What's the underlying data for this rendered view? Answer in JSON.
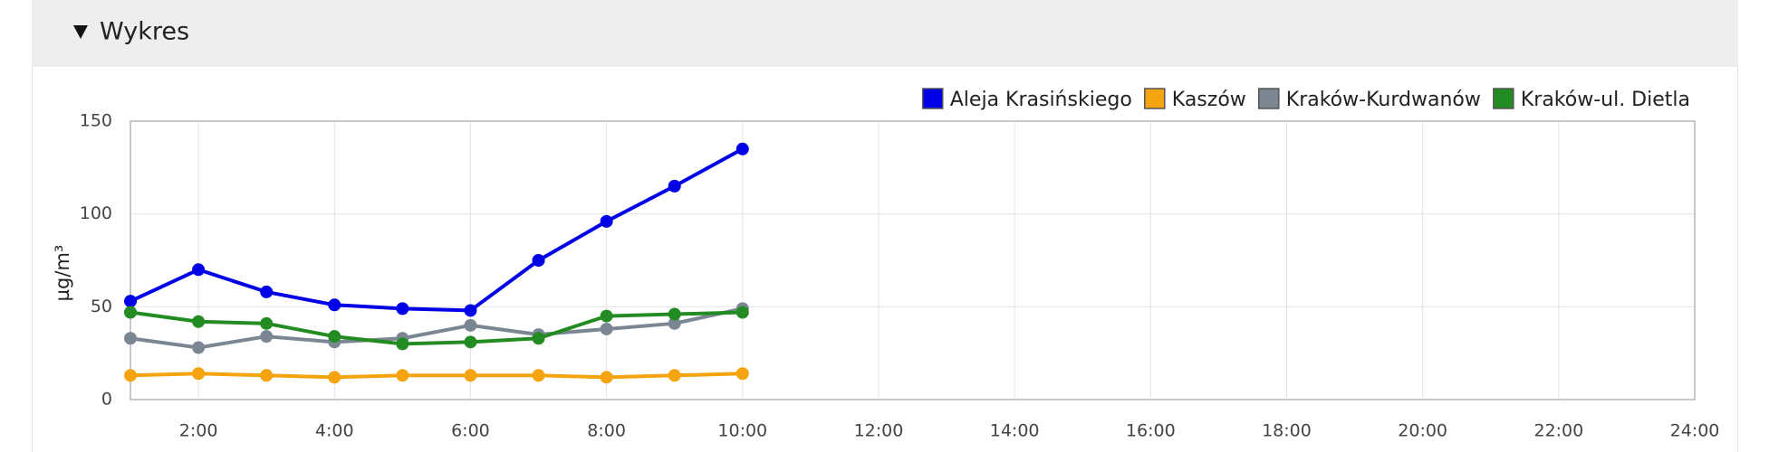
{
  "header": {
    "title": "Wykres"
  },
  "chart_data": {
    "type": "line",
    "ylabel": "µg/m³",
    "x": [
      1,
      2,
      3,
      4,
      5,
      6,
      7,
      8,
      9,
      10
    ],
    "series": [
      {
        "name": "Aleja Krasińskiego",
        "color": "#0000e6",
        "values": [
          53,
          70,
          58,
          51,
          49,
          48,
          75,
          96,
          115,
          135
        ]
      },
      {
        "name": "Kaszów",
        "color": "#f5a30f",
        "values": [
          13,
          14,
          13,
          12,
          13,
          13,
          13,
          12,
          13,
          14
        ]
      },
      {
        "name": "Kraków-Kurdwanów",
        "color": "#7a8793",
        "values": [
          33,
          28,
          34,
          31,
          33,
          40,
          35,
          38,
          41,
          49
        ]
      },
      {
        "name": "Kraków-ul. Dietla",
        "color": "#228b22",
        "values": [
          47,
          42,
          41,
          34,
          30,
          31,
          33,
          45,
          46,
          47
        ]
      }
    ],
    "xlim": [
      1,
      24
    ],
    "xticks": [
      {
        "value": 2,
        "label": "2:00"
      },
      {
        "value": 4,
        "label": "4:00"
      },
      {
        "value": 6,
        "label": "6:00"
      },
      {
        "value": 8,
        "label": "8:00"
      },
      {
        "value": 10,
        "label": "10:00"
      },
      {
        "value": 12,
        "label": "12:00"
      },
      {
        "value": 14,
        "label": "14:00"
      },
      {
        "value": 16,
        "label": "16:00"
      },
      {
        "value": 18,
        "label": "18:00"
      },
      {
        "value": 20,
        "label": "20:00"
      },
      {
        "value": 22,
        "label": "22:00"
      },
      {
        "value": 24,
        "label": "24:00"
      }
    ],
    "ylim": [
      0,
      150
    ],
    "yticks": [
      0,
      50,
      100,
      150
    ],
    "grid": true,
    "legend": "top-right"
  }
}
